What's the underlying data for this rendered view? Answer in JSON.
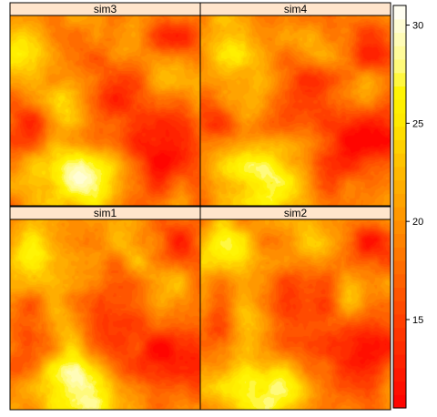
{
  "chart_data": {
    "type": "heatmap",
    "title": "",
    "panels": [
      {
        "name": "sim3",
        "hotspots": [
          [
            0.42,
            0.85,
            9.5,
            0.13
          ],
          [
            0.28,
            0.47,
            8.0,
            0.1
          ],
          [
            0.08,
            0.18,
            6.0,
            0.1
          ],
          [
            0.23,
            0.78,
            4.0,
            0.12
          ],
          [
            0.82,
            0.3,
            4.0,
            0.1
          ],
          [
            0.62,
            0.12,
            3.5,
            0.08
          ]
        ],
        "coldspots": [
          [
            0.85,
            0.68,
            8.0,
            0.14
          ],
          [
            0.12,
            0.57,
            6.5,
            0.12
          ],
          [
            0.88,
            0.13,
            6.0,
            0.11
          ],
          [
            0.58,
            0.38,
            4.5,
            0.14
          ],
          [
            0.4,
            0.58,
            3.5,
            0.12
          ],
          [
            0.62,
            0.82,
            3.0,
            0.12
          ]
        ]
      },
      {
        "name": "sim4",
        "hotspots": [
          [
            0.4,
            0.86,
            9.5,
            0.13
          ],
          [
            0.24,
            0.48,
            8.0,
            0.1
          ],
          [
            0.15,
            0.18,
            6.5,
            0.1
          ],
          [
            0.2,
            0.78,
            4.0,
            0.12
          ],
          [
            0.8,
            0.42,
            4.5,
            0.09
          ],
          [
            0.64,
            0.16,
            3.5,
            0.08
          ]
        ],
        "coldspots": [
          [
            0.88,
            0.62,
            8.5,
            0.14
          ],
          [
            0.12,
            0.56,
            6.5,
            0.12
          ],
          [
            0.88,
            0.13,
            6.0,
            0.11
          ],
          [
            0.56,
            0.4,
            4.5,
            0.14
          ],
          [
            0.36,
            0.62,
            3.5,
            0.12
          ],
          [
            0.64,
            0.82,
            3.0,
            0.12
          ]
        ]
      },
      {
        "name": "sim1",
        "hotspots": [
          [
            0.42,
            0.88,
            9.5,
            0.13
          ],
          [
            0.28,
            0.57,
            8.0,
            0.1
          ],
          [
            0.12,
            0.15,
            6.0,
            0.1
          ],
          [
            0.24,
            0.82,
            4.0,
            0.12
          ],
          [
            0.8,
            0.3,
            4.5,
            0.1
          ],
          [
            0.62,
            0.12,
            3.5,
            0.08
          ]
        ],
        "coldspots": [
          [
            0.86,
            0.73,
            8.0,
            0.14
          ],
          [
            0.12,
            0.62,
            6.5,
            0.12
          ],
          [
            0.88,
            0.13,
            6.0,
            0.11
          ],
          [
            0.56,
            0.44,
            4.5,
            0.14
          ],
          [
            0.4,
            0.62,
            3.5,
            0.12
          ],
          [
            0.62,
            0.85,
            3.0,
            0.12
          ]
        ]
      },
      {
        "name": "sim2",
        "hotspots": [
          [
            0.4,
            0.88,
            9.5,
            0.13
          ],
          [
            0.24,
            0.55,
            8.0,
            0.1
          ],
          [
            0.14,
            0.15,
            6.5,
            0.1
          ],
          [
            0.2,
            0.82,
            4.0,
            0.12
          ],
          [
            0.78,
            0.44,
            4.5,
            0.09
          ],
          [
            0.62,
            0.16,
            3.5,
            0.08
          ]
        ],
        "coldspots": [
          [
            0.86,
            0.67,
            8.5,
            0.14
          ],
          [
            0.14,
            0.6,
            6.5,
            0.12
          ],
          [
            0.88,
            0.13,
            6.0,
            0.11
          ],
          [
            0.56,
            0.45,
            4.5,
            0.14
          ],
          [
            0.36,
            0.65,
            3.5,
            0.12
          ],
          [
            0.62,
            0.85,
            3.0,
            0.12
          ]
        ]
      }
    ],
    "layout": {
      "columns": 2,
      "rows": 2,
      "order": [
        "sim3",
        "sim4",
        "sim1",
        "sim2"
      ]
    },
    "field": {
      "base": 19.5,
      "noise_amplitude": 2.5,
      "min": 10.5,
      "max": 31
    },
    "colorbar": {
      "range": [
        10.5,
        31
      ],
      "ticks": [
        15,
        20,
        25,
        30
      ],
      "levels": 30,
      "scheme": "heat"
    },
    "colors": {
      "strip_fill": "#FFE5CC",
      "frame": "#000000",
      "stops": [
        {
          "v": 10.5,
          "c": "#FF0000"
        },
        {
          "v": 15.0,
          "c": "#FF4000"
        },
        {
          "v": 20.0,
          "c": "#FF9200"
        },
        {
          "v": 23.0,
          "c": "#FFC000"
        },
        {
          "v": 25.0,
          "c": "#FFE700"
        },
        {
          "v": 26.5,
          "c": "#FFF400"
        },
        {
          "v": 28.0,
          "c": "#FFFA80"
        },
        {
          "v": 31.0,
          "c": "#FFFFFF"
        }
      ]
    }
  }
}
